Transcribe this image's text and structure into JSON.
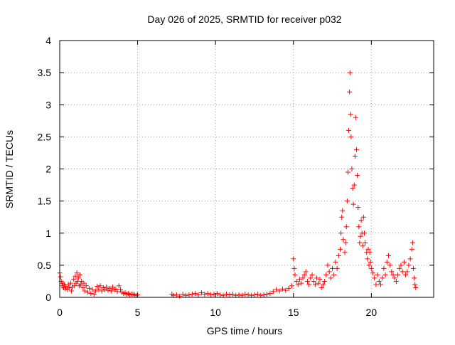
{
  "chart_data": {
    "type": "scatter",
    "title": "Day 026 of 2025, SRMTID for receiver p032",
    "xlabel": "GPS time / hours",
    "ylabel": "SRMTID / TECUs",
    "xlim": [
      0,
      24
    ],
    "ylim": [
      0,
      4
    ],
    "x_ticks": [
      0,
      5,
      10,
      15,
      20
    ],
    "x_tick_labels": [
      "0",
      "5",
      "10",
      "15",
      "20"
    ],
    "y_ticks": [
      0,
      0.5,
      1,
      1.5,
      2,
      2.5,
      3,
      3.5,
      4
    ],
    "y_tick_labels": [
      "0",
      "0.5",
      "1",
      "1.5",
      "2",
      "2.5",
      "3",
      "3.5",
      "4"
    ],
    "grid": true,
    "marker": "+",
    "series": [
      {
        "name": "SRMTID",
        "color": "#ff0000",
        "points": [
          [
            0.0,
            0.38
          ],
          [
            0.05,
            0.32
          ],
          [
            0.1,
            0.25
          ],
          [
            0.15,
            0.18
          ],
          [
            0.2,
            0.22
          ],
          [
            0.25,
            0.15
          ],
          [
            0.3,
            0.2
          ],
          [
            0.35,
            0.13
          ],
          [
            0.4,
            0.17
          ],
          [
            0.5,
            0.12
          ],
          [
            0.55,
            0.2
          ],
          [
            0.6,
            0.15
          ],
          [
            0.7,
            0.22
          ],
          [
            0.75,
            0.1
          ],
          [
            0.8,
            0.16
          ],
          [
            0.9,
            0.28
          ],
          [
            0.95,
            0.18
          ],
          [
            1.0,
            0.33
          ],
          [
            1.05,
            0.22
          ],
          [
            1.1,
            0.38
          ],
          [
            1.15,
            0.25
          ],
          [
            1.2,
            0.3
          ],
          [
            1.25,
            0.18
          ],
          [
            1.3,
            0.35
          ],
          [
            1.35,
            0.2
          ],
          [
            1.4,
            0.25
          ],
          [
            1.5,
            0.15
          ],
          [
            1.55,
            0.22
          ],
          [
            1.6,
            0.1
          ],
          [
            1.7,
            0.18
          ],
          [
            1.8,
            0.08
          ],
          [
            1.9,
            0.14
          ],
          [
            2.0,
            0.06
          ],
          [
            2.1,
            0.12
          ],
          [
            2.2,
            0.05
          ],
          [
            2.3,
            0.1
          ],
          [
            2.4,
            0.17
          ],
          [
            2.5,
            0.12
          ],
          [
            2.6,
            0.18
          ],
          [
            2.7,
            0.1
          ],
          [
            2.8,
            0.15
          ],
          [
            2.9,
            0.12
          ],
          [
            3.0,
            0.16
          ],
          [
            3.1,
            0.11
          ],
          [
            3.2,
            0.14
          ],
          [
            3.3,
            0.1
          ],
          [
            3.4,
            0.16
          ],
          [
            3.5,
            0.12
          ],
          [
            3.6,
            0.13
          ],
          [
            3.7,
            0.09
          ],
          [
            3.8,
            0.18
          ],
          [
            3.9,
            0.12
          ],
          [
            4.0,
            0.08
          ],
          [
            4.1,
            0.06
          ],
          [
            4.2,
            0.07
          ],
          [
            4.3,
            0.05
          ],
          [
            4.4,
            0.06
          ],
          [
            4.5,
            0.04
          ],
          [
            4.6,
            0.05
          ],
          [
            4.7,
            0.05
          ],
          [
            4.8,
            0.04
          ],
          [
            4.9,
            0.03
          ],
          [
            5.0,
            0.04
          ],
          [
            7.2,
            0.05
          ],
          [
            7.3,
            0.03
          ],
          [
            7.5,
            0.04
          ],
          [
            7.7,
            0.02
          ],
          [
            7.9,
            0.05
          ],
          [
            8.1,
            0.03
          ],
          [
            8.3,
            0.04
          ],
          [
            8.5,
            0.05
          ],
          [
            8.7,
            0.06
          ],
          [
            8.9,
            0.04
          ],
          [
            9.1,
            0.07
          ],
          [
            9.3,
            0.05
          ],
          [
            9.5,
            0.06
          ],
          [
            9.7,
            0.04
          ],
          [
            9.9,
            0.05
          ],
          [
            10.1,
            0.06
          ],
          [
            10.3,
            0.04
          ],
          [
            10.5,
            0.03
          ],
          [
            10.7,
            0.05
          ],
          [
            10.9,
            0.04
          ],
          [
            11.1,
            0.05
          ],
          [
            11.3,
            0.03
          ],
          [
            11.5,
            0.04
          ],
          [
            11.7,
            0.03
          ],
          [
            11.9,
            0.05
          ],
          [
            12.1,
            0.04
          ],
          [
            12.3,
            0.03
          ],
          [
            12.5,
            0.04
          ],
          [
            12.7,
            0.05
          ],
          [
            12.9,
            0.03
          ],
          [
            13.1,
            0.04
          ],
          [
            13.3,
            0.05
          ],
          [
            13.5,
            0.06
          ],
          [
            13.7,
            0.09
          ],
          [
            13.9,
            0.12
          ],
          [
            14.1,
            0.1
          ],
          [
            14.3,
            0.13
          ],
          [
            14.5,
            0.11
          ],
          [
            14.7,
            0.14
          ],
          [
            14.9,
            0.18
          ],
          [
            15.0,
            0.6
          ],
          [
            15.05,
            0.45
          ],
          [
            15.1,
            0.35
          ],
          [
            15.2,
            0.25
          ],
          [
            15.3,
            0.2
          ],
          [
            15.4,
            0.28
          ],
          [
            15.5,
            0.22
          ],
          [
            15.6,
            0.3
          ],
          [
            15.7,
            0.35
          ],
          [
            15.8,
            0.4
          ],
          [
            15.9,
            0.25
          ],
          [
            16.0,
            0.2
          ],
          [
            16.1,
            0.3
          ],
          [
            16.2,
            0.35
          ],
          [
            16.3,
            0.25
          ],
          [
            16.4,
            0.2
          ],
          [
            16.5,
            0.3
          ],
          [
            16.6,
            0.22
          ],
          [
            16.7,
            0.28
          ],
          [
            16.8,
            0.15
          ],
          [
            16.9,
            0.2
          ],
          [
            17.0,
            0.25
          ],
          [
            17.1,
            0.35
          ],
          [
            17.2,
            0.5
          ],
          [
            17.3,
            0.4
          ],
          [
            17.4,
            0.3
          ],
          [
            17.5,
            0.45
          ],
          [
            17.6,
            0.35
          ],
          [
            17.7,
            0.55
          ],
          [
            17.8,
            0.45
          ],
          [
            17.9,
            0.65
          ],
          [
            18.0,
            0.75
          ],
          [
            18.05,
            1.0
          ],
          [
            18.1,
            1.25
          ],
          [
            18.15,
            1.35
          ],
          [
            18.2,
            0.9
          ],
          [
            18.3,
            0.7
          ],
          [
            18.35,
            0.85
          ],
          [
            18.4,
            1.1
          ],
          [
            18.45,
            1.5
          ],
          [
            18.5,
            1.95
          ],
          [
            18.55,
            2.6
          ],
          [
            18.6,
            3.2
          ],
          [
            18.63,
            3.5
          ],
          [
            18.67,
            2.85
          ],
          [
            18.7,
            2.5
          ],
          [
            18.75,
            2.0
          ],
          [
            18.8,
            1.7
          ],
          [
            18.85,
            1.45
          ],
          [
            18.9,
            1.75
          ],
          [
            18.95,
            2.2
          ],
          [
            19.0,
            2.8
          ],
          [
            19.05,
            2.3
          ],
          [
            19.1,
            1.9
          ],
          [
            19.15,
            1.4
          ],
          [
            19.2,
            1.1
          ],
          [
            19.25,
            0.85
          ],
          [
            19.3,
            0.95
          ],
          [
            19.35,
            1.2
          ],
          [
            19.4,
            1.0
          ],
          [
            19.45,
            0.8
          ],
          [
            19.5,
            1.25
          ],
          [
            19.55,
            1.0
          ],
          [
            19.6,
            0.85
          ],
          [
            19.7,
            0.7
          ],
          [
            19.75,
            0.6
          ],
          [
            19.8,
            0.75
          ],
          [
            19.85,
            0.5
          ],
          [
            19.9,
            0.7
          ],
          [
            19.95,
            0.55
          ],
          [
            20.0,
            0.45
          ],
          [
            20.1,
            0.38
          ],
          [
            20.2,
            0.3
          ],
          [
            20.3,
            0.2
          ],
          [
            20.4,
            0.35
          ],
          [
            20.5,
            0.25
          ],
          [
            20.6,
            0.2
          ],
          [
            20.7,
            0.3
          ],
          [
            20.8,
            0.45
          ],
          [
            20.9,
            0.35
          ],
          [
            21.0,
            0.55
          ],
          [
            21.1,
            0.65
          ],
          [
            21.2,
            0.5
          ],
          [
            21.3,
            0.4
          ],
          [
            21.4,
            0.35
          ],
          [
            21.5,
            0.3
          ],
          [
            21.6,
            0.25
          ],
          [
            21.7,
            0.35
          ],
          [
            21.8,
            0.45
          ],
          [
            21.9,
            0.5
          ],
          [
            22.0,
            0.4
          ],
          [
            22.1,
            0.55
          ],
          [
            22.2,
            0.35
          ],
          [
            22.3,
            0.4
          ],
          [
            22.4,
            0.5
          ],
          [
            22.5,
            0.6
          ],
          [
            22.6,
            0.75
          ],
          [
            22.65,
            0.85
          ],
          [
            22.7,
            0.45
          ],
          [
            22.75,
            0.3
          ],
          [
            22.8,
            0.2
          ],
          [
            22.85,
            0.15
          ]
        ]
      }
    ]
  }
}
